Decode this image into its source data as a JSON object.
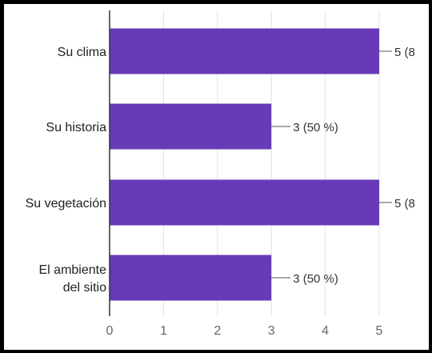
{
  "chart_data": {
    "type": "bar",
    "orientation": "horizontal",
    "title": "",
    "xlabel": "",
    "ylabel": "",
    "categories": [
      [
        "Su clima"
      ],
      [
        "Su historia"
      ],
      [
        "Su vegetación"
      ],
      [
        "El ambiente",
        "del sitio"
      ]
    ],
    "values": [
      5,
      3,
      5,
      3
    ],
    "value_labels": [
      "5 (8",
      "3 (50 %)",
      "5 (8",
      "3 (50 %)"
    ],
    "xlim": [
      0,
      5
    ],
    "x_ticks": [
      "0",
      "1",
      "2",
      "3",
      "4",
      "5"
    ],
    "grid": true,
    "legend": "none",
    "colors": {
      "bar": "#673ab7",
      "grid": "#e0e0e0",
      "axis": "#333333",
      "tick_text": "#666666",
      "label_text": "#212121",
      "frame": "#000000"
    }
  }
}
